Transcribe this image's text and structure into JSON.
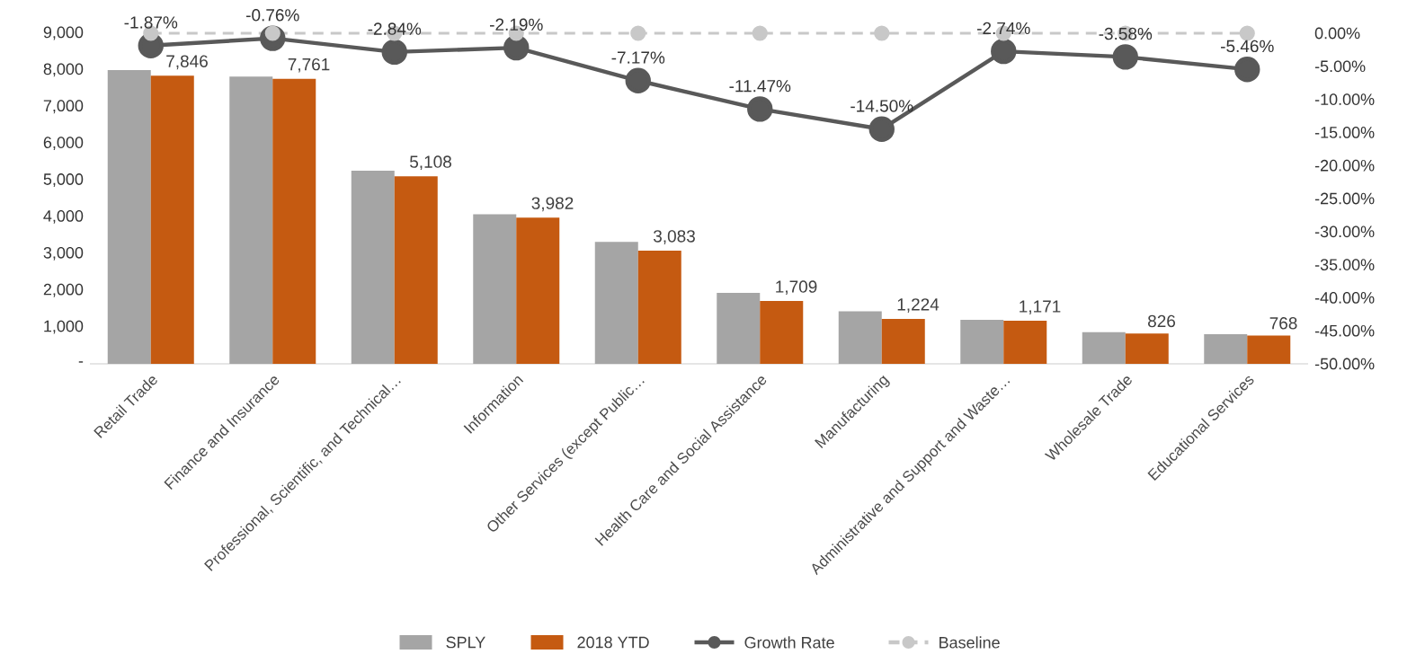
{
  "chart_data": {
    "type": "bar",
    "categories": [
      "Retail Trade",
      "Finance and Insurance",
      "Professional, Scientific, and Technical…",
      "Information",
      "Other Services (except Public…",
      "Health Care and Social Assistance",
      "Manufacturing",
      "Administrative and Support and Waste…",
      "Wholesale Trade",
      "Educational Services"
    ],
    "series": [
      {
        "name": "SPLY",
        "color": "#a5a5a5",
        "values": [
          8000,
          7820,
          5260,
          4070,
          3320,
          1930,
          1430,
          1200,
          860,
          810
        ]
      },
      {
        "name": "2018 YTD",
        "color": "#c55a11",
        "values": [
          7846,
          7761,
          5108,
          3982,
          3083,
          1709,
          1224,
          1171,
          826,
          768
        ],
        "value_labels": [
          "7,846",
          "7,761",
          "5,108",
          "3,982",
          "3,083",
          "1,709",
          "1,224",
          "1,171",
          "826",
          "768"
        ]
      },
      {
        "name": "Growth Rate",
        "type": "line",
        "axis": "y2",
        "color": "#595959",
        "marker": "circle",
        "line_style": "solid",
        "values": [
          -1.87,
          -0.76,
          -2.84,
          -2.19,
          -7.17,
          -11.47,
          -14.5,
          -2.74,
          -3.58,
          -5.46
        ],
        "value_labels": [
          "-1.87%",
          "-0.76%",
          "-2.84%",
          "-2.19%",
          "-7.17%",
          "-11.47%",
          "-14.50%",
          "-2.74%",
          "-3.58%",
          "-5.46%"
        ]
      },
      {
        "name": "Baseline",
        "type": "line",
        "axis": "y2",
        "color": "#c8c8c8",
        "marker": "circle",
        "line_style": "dashed",
        "values": [
          0,
          0,
          0,
          0,
          0,
          0,
          0,
          0,
          0,
          0
        ]
      }
    ],
    "ylim": [
      0,
      9000
    ],
    "yticks": [
      {
        "value": 0,
        "label": "-"
      },
      {
        "value": 1000,
        "label": "1,000"
      },
      {
        "value": 2000,
        "label": "2,000"
      },
      {
        "value": 3000,
        "label": "3,000"
      },
      {
        "value": 4000,
        "label": "4,000"
      },
      {
        "value": 5000,
        "label": "5,000"
      },
      {
        "value": 6000,
        "label": "6,000"
      },
      {
        "value": 7000,
        "label": "7,000"
      },
      {
        "value": 8000,
        "label": "8,000"
      },
      {
        "value": 9000,
        "label": "9,000"
      }
    ],
    "y2lim": [
      -50,
      0
    ],
    "y2ticks": [
      {
        "value": -50,
        "label": "-50.00%"
      },
      {
        "value": -45,
        "label": "-45.00%"
      },
      {
        "value": -40,
        "label": "-40.00%"
      },
      {
        "value": -35,
        "label": "-35.00%"
      },
      {
        "value": -30,
        "label": "-30.00%"
      },
      {
        "value": -25,
        "label": "-25.00%"
      },
      {
        "value": -20,
        "label": "-20.00%"
      },
      {
        "value": -15,
        "label": "-15.00%"
      },
      {
        "value": -10,
        "label": "-10.00%"
      },
      {
        "value": -5,
        "label": "-5.00%"
      },
      {
        "value": 0,
        "label": "0.00%"
      }
    ],
    "legend": "bottom"
  }
}
